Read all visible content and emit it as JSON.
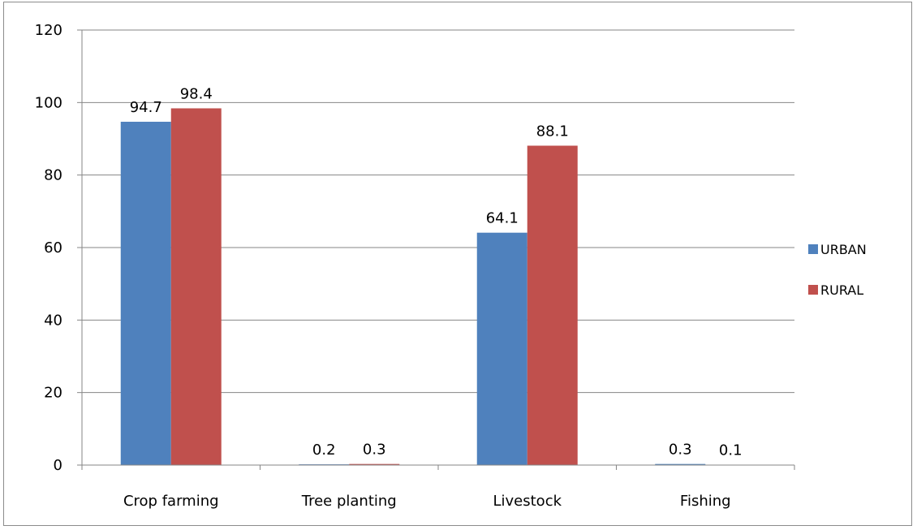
{
  "chart_data": {
    "type": "bar",
    "categories": [
      "Crop farming",
      "Tree planting",
      "Livestock",
      "Fishing"
    ],
    "series": [
      {
        "name": "URBAN",
        "values": [
          94.7,
          0.2,
          64.1,
          0.3
        ],
        "color": "#4f81bd"
      },
      {
        "name": "RURAL",
        "values": [
          98.4,
          0.3,
          88.1,
          0.1
        ],
        "color": "#c0504d"
      }
    ],
    "data_labels": [
      [
        "94.7",
        "0.2",
        "64.1",
        "0.3"
      ],
      [
        "98.4",
        "0.3",
        "88.1",
        "0.1"
      ]
    ],
    "ylim": [
      0,
      120
    ],
    "yticks": [
      0,
      20,
      40,
      60,
      80,
      100,
      120
    ],
    "title": "",
    "xlabel": "",
    "ylabel": "",
    "grid": true,
    "legend_position": "right",
    "gridline_color": "#868686"
  }
}
